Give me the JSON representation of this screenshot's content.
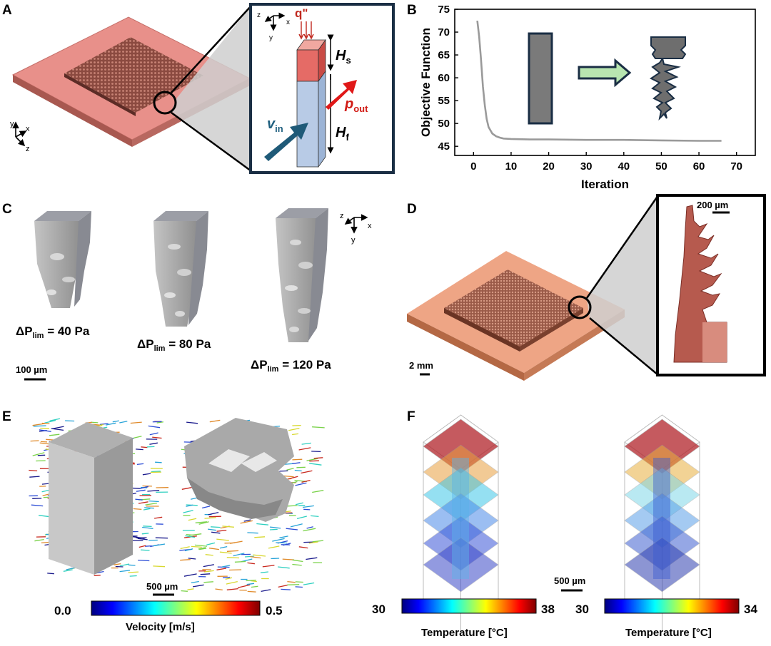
{
  "panels": {
    "A": {
      "label": "A",
      "axes": {
        "y": "y",
        "x": "x",
        "z": "z"
      },
      "inset": {
        "axes": {
          "z": "z",
          "x": "x",
          "y": "y"
        },
        "q_label": "q\"",
        "hs_label": "H",
        "hs_sub": "s",
        "hf_label": "H",
        "hf_sub": "f",
        "vin_label": "v",
        "vin_sub": "in",
        "pout_label": "p",
        "pout_sub": "out"
      }
    },
    "B": {
      "label": "B"
    },
    "C": {
      "label": "C",
      "axes": {
        "z": "z",
        "x": "x",
        "y": "y"
      },
      "captions": [
        {
          "main": "ΔP",
          "sub": "lim",
          "value": " = 40 Pa"
        },
        {
          "main": "ΔP",
          "sub": "lim",
          "value": " = 80 Pa"
        },
        {
          "main": "ΔP",
          "sub": "lim",
          "value": " = 120 Pa"
        }
      ],
      "scale": "100 µm"
    },
    "D": {
      "label": "D",
      "scale": "2 mm",
      "inset_scale": "200 µm"
    },
    "E": {
      "label": "E",
      "scale": "500 µm",
      "colorbar": {
        "min": "0.0",
        "max": "0.5",
        "title": "Velocity [m/s]"
      }
    },
    "F": {
      "label": "F",
      "scale": "500 µm",
      "colorbars": [
        {
          "min": "30",
          "max": "38",
          "title": "Temperature [°C]"
        },
        {
          "min": "30",
          "max": "34",
          "title": "Temperature [°C]"
        }
      ]
    }
  },
  "chart_data": {
    "type": "line",
    "title": "",
    "xlabel": "Iteration",
    "ylabel": "Objective Function",
    "xlim": [
      -5,
      75
    ],
    "ylim": [
      43,
      75
    ],
    "xticks": [
      0,
      10,
      20,
      30,
      40,
      50,
      60,
      70
    ],
    "yticks": [
      45,
      50,
      55,
      60,
      65,
      70,
      75
    ],
    "x": [
      1,
      1.5,
      2,
      2.5,
      3,
      3.5,
      4,
      5,
      6,
      7,
      8,
      10,
      15,
      20,
      30,
      40,
      50,
      60,
      66
    ],
    "y": [
      72.5,
      69,
      64,
      58,
      54,
      51,
      49.2,
      47.8,
      47.2,
      46.9,
      46.7,
      46.6,
      46.5,
      46.5,
      46.4,
      46.4,
      46.3,
      46.2,
      46.2
    ],
    "line_color": "#9a9a9a"
  }
}
